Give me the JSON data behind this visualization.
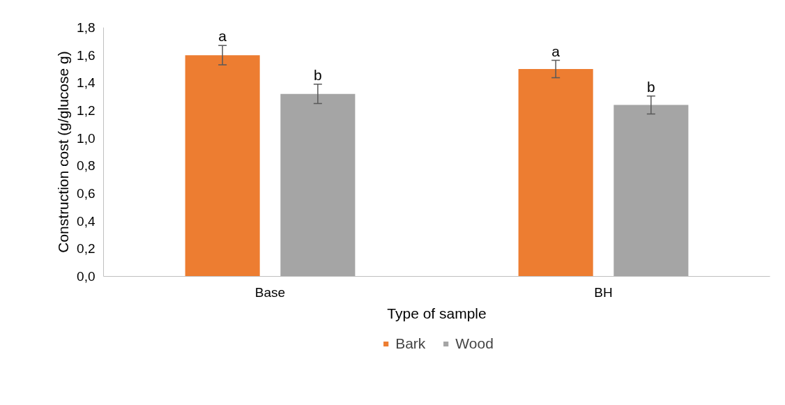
{
  "chart_data": {
    "type": "bar",
    "xlabel": "Type of sample",
    "ylabel": "Construction cost (g/glucose g)",
    "categories": [
      "Base",
      "BH"
    ],
    "series": [
      {
        "name": "Bark",
        "color": "#ed7d31",
        "values": [
          1.6,
          1.5
        ],
        "errors": [
          0.07,
          0.063
        ]
      },
      {
        "name": "Wood",
        "color": "#a5a5a5",
        "values": [
          1.32,
          1.24
        ],
        "errors": [
          0.07,
          0.065
        ]
      }
    ],
    "ylim": [
      0,
      1.8
    ],
    "yticks": [
      {
        "value": 0,
        "label": "0,0"
      },
      {
        "value": 0.2,
        "label": "0,2"
      },
      {
        "value": 0.4,
        "label": "0,4"
      },
      {
        "value": 0.6,
        "label": "0,6"
      },
      {
        "value": 0.8,
        "label": "0,8"
      },
      {
        "value": 1.0,
        "label": "1,0"
      },
      {
        "value": 1.2,
        "label": "1,2"
      },
      {
        "value": 1.4,
        "label": "1,4"
      },
      {
        "value": 1.6,
        "label": "1,6"
      },
      {
        "value": 1.8,
        "label": "1,8"
      }
    ],
    "annotations": [
      "a",
      "b",
      "a",
      "b"
    ],
    "grid": false,
    "legend": "bottom"
  }
}
